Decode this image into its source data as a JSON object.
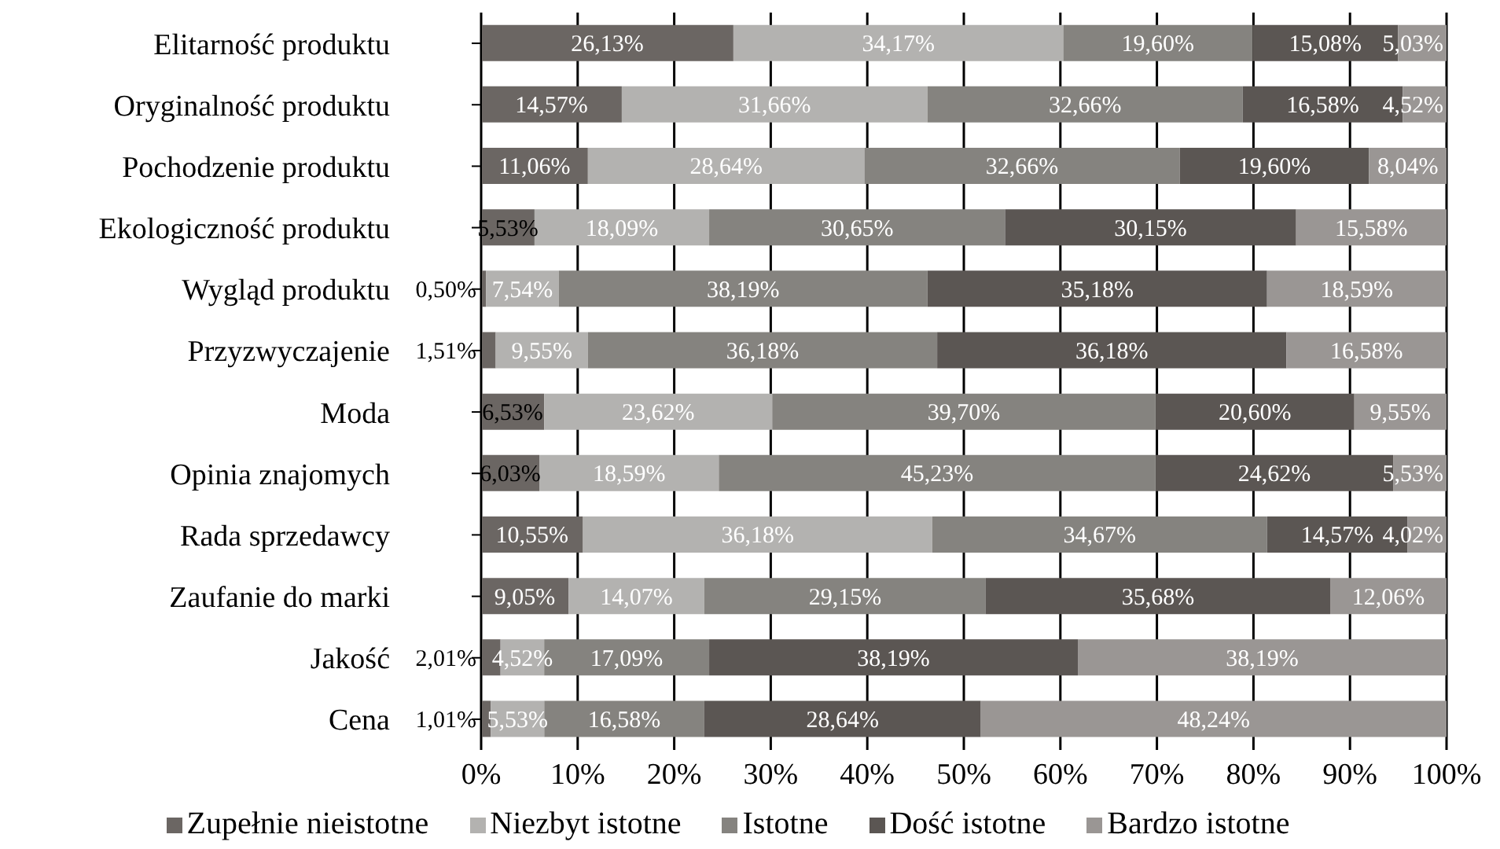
{
  "chart_data": {
    "type": "bar",
    "orientation": "horizontal",
    "stacked": true,
    "categories": [
      "Elitarność produktu",
      "Oryginalność produktu",
      "Pochodzenie produktu",
      "Ekologiczność produktu",
      "Wygląd produktu",
      "Przyzwyczajenie",
      "Moda",
      "Opinia znajomych",
      "Rada sprzedawcy",
      "Zaufanie do marki",
      "Jakość",
      "Cena"
    ],
    "series": [
      {
        "name": "Zupełnie nieistotne",
        "color": "#6b6663",
        "values": [
          26.13,
          14.57,
          11.06,
          5.53,
          0.5,
          1.51,
          6.53,
          6.03,
          10.55,
          9.05,
          2.01,
          1.01
        ],
        "value_labels": [
          "26,13%",
          "14,57%",
          "11,06%",
          "5,53%",
          "0,50%",
          "1,51%",
          "6,53%",
          "6,03%",
          "10,55%",
          "9,05%",
          "2,01%",
          "1,01%"
        ]
      },
      {
        "name": "Niezbyt istotne",
        "color": "#b3b2b0",
        "values": [
          34.17,
          31.66,
          28.64,
          18.09,
          7.54,
          9.55,
          23.62,
          18.59,
          36.18,
          14.07,
          4.52,
          5.53
        ],
        "value_labels": [
          "34,17%",
          "31,66%",
          "28,64%",
          "18,09%",
          "7,54%",
          "9,55%",
          "23,62%",
          "18,59%",
          "36,18%",
          "14,07%",
          "4,52%",
          "5,53%"
        ]
      },
      {
        "name": "Istotne",
        "color": "#85837f",
        "values": [
          19.6,
          32.66,
          32.66,
          30.65,
          38.19,
          36.18,
          39.7,
          45.23,
          34.67,
          29.15,
          17.09,
          16.58
        ],
        "value_labels": [
          "19,60%",
          "32,66%",
          "32,66%",
          "30,65%",
          "38,19%",
          "36,18%",
          "39,70%",
          "45,23%",
          "34,67%",
          "29,15%",
          "17,09%",
          "16,58%"
        ]
      },
      {
        "name": "Dość istotne",
        "color": "#5b5653",
        "values": [
          15.08,
          16.58,
          19.6,
          30.15,
          35.18,
          36.18,
          20.6,
          24.62,
          14.57,
          35.68,
          38.19,
          28.64
        ],
        "value_labels": [
          "15,08%",
          "16,58%",
          "19,60%",
          "30,15%",
          "35,18%",
          "36,18%",
          "20,60%",
          "24,62%",
          "14,57%",
          "35,68%",
          "38,19%",
          "28,64%"
        ]
      },
      {
        "name": "Bardzo istotne",
        "color": "#9a9694",
        "values": [
          5.03,
          4.52,
          8.04,
          15.58,
          18.59,
          16.58,
          9.55,
          5.53,
          4.02,
          12.06,
          38.19,
          48.24
        ],
        "value_labels": [
          "5,03%",
          "4,52%",
          "8,04%",
          "15,58%",
          "18,59%",
          "16,58%",
          "9,55%",
          "5,53%",
          "4,02%",
          "12,06%",
          "38,19%",
          "48,24%"
        ]
      }
    ],
    "xlim": [
      0,
      100
    ],
    "xticks": [
      {
        "value": 0,
        "label": "0%"
      },
      {
        "value": 10,
        "label": "10%"
      },
      {
        "value": 20,
        "label": "20%"
      },
      {
        "value": 30,
        "label": "30%"
      },
      {
        "value": 40,
        "label": "40%"
      },
      {
        "value": 50,
        "label": "50%"
      },
      {
        "value": 60,
        "label": "60%"
      },
      {
        "value": 70,
        "label": "70%"
      },
      {
        "value": 80,
        "label": "80%"
      },
      {
        "value": 90,
        "label": "90%"
      },
      {
        "value": 100,
        "label": "100%"
      }
    ],
    "grid": "x",
    "legend": "bottom"
  }
}
